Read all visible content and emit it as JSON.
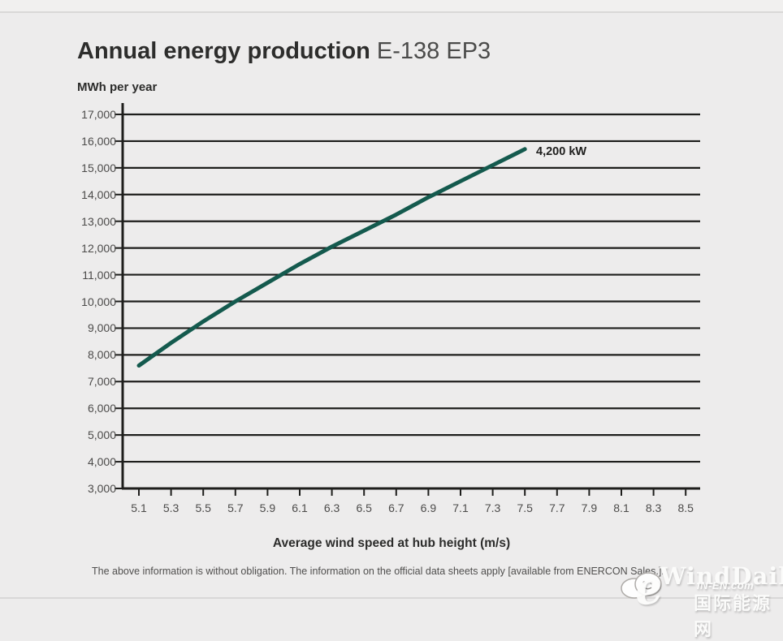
{
  "header": {
    "title_main": "Annual energy production",
    "title_model": "E-138 EP3",
    "unit_label": "MWh per year"
  },
  "footer": {
    "note": "The above information is without obligation. The information on the official data sheets apply [available from ENERCON Sales.]."
  },
  "watermark": {
    "brand": "WindDaily",
    "elogo": "e",
    "site": "IN-EN.com",
    "site_cn": "国际能源网"
  },
  "chart_data": {
    "type": "line",
    "title": "Annual energy production E-138 EP3",
    "ylabel": "MWh per year",
    "xlabel": "Average wind speed at hub height (m/s)",
    "annotation": "4,200 kW",
    "grid": true,
    "legend_position": "label-at-line-end",
    "xlim": [
      5.0,
      8.6
    ],
    "ylim": [
      3000,
      17000
    ],
    "x_ticks": [
      5.1,
      5.3,
      5.5,
      5.7,
      5.9,
      6.1,
      6.3,
      6.5,
      6.7,
      6.9,
      7.1,
      7.3,
      7.5,
      7.7,
      7.9,
      8.1,
      8.3,
      8.5
    ],
    "x_tick_labels": [
      "5.1",
      "5.3",
      "5.5",
      "5.7",
      "5.9",
      "6.1",
      "6.3",
      "6.5",
      "6.7",
      "6.9",
      "7.1",
      "7.3",
      "7.5",
      "7.7",
      "7.9",
      "8.1",
      "8.3",
      "8.5"
    ],
    "y_ticks": [
      3000,
      4000,
      5000,
      6000,
      7000,
      8000,
      9000,
      10000,
      11000,
      12000,
      13000,
      14000,
      15000,
      16000,
      17000
    ],
    "y_tick_labels": [
      "3,000",
      "4,000",
      "5,000",
      "6,000",
      "7,000",
      "8,000",
      "9,000",
      "10,000",
      "11,000",
      "12,000",
      "13,000",
      "14,000",
      "15,000",
      "16,000",
      "17,000"
    ],
    "grid_color": "#1e1e1c",
    "line_color": "#145a4e",
    "series": [
      {
        "name": "4,200 kW",
        "x": [
          5.1,
          5.3,
          5.5,
          5.7,
          5.9,
          6.1,
          6.3,
          6.5,
          6.7,
          6.9,
          7.1,
          7.3,
          7.5
        ],
        "y": [
          7600,
          8450,
          9250,
          10000,
          10700,
          11400,
          12050,
          12650,
          13250,
          13900,
          14500,
          15100,
          15700
        ]
      }
    ]
  }
}
